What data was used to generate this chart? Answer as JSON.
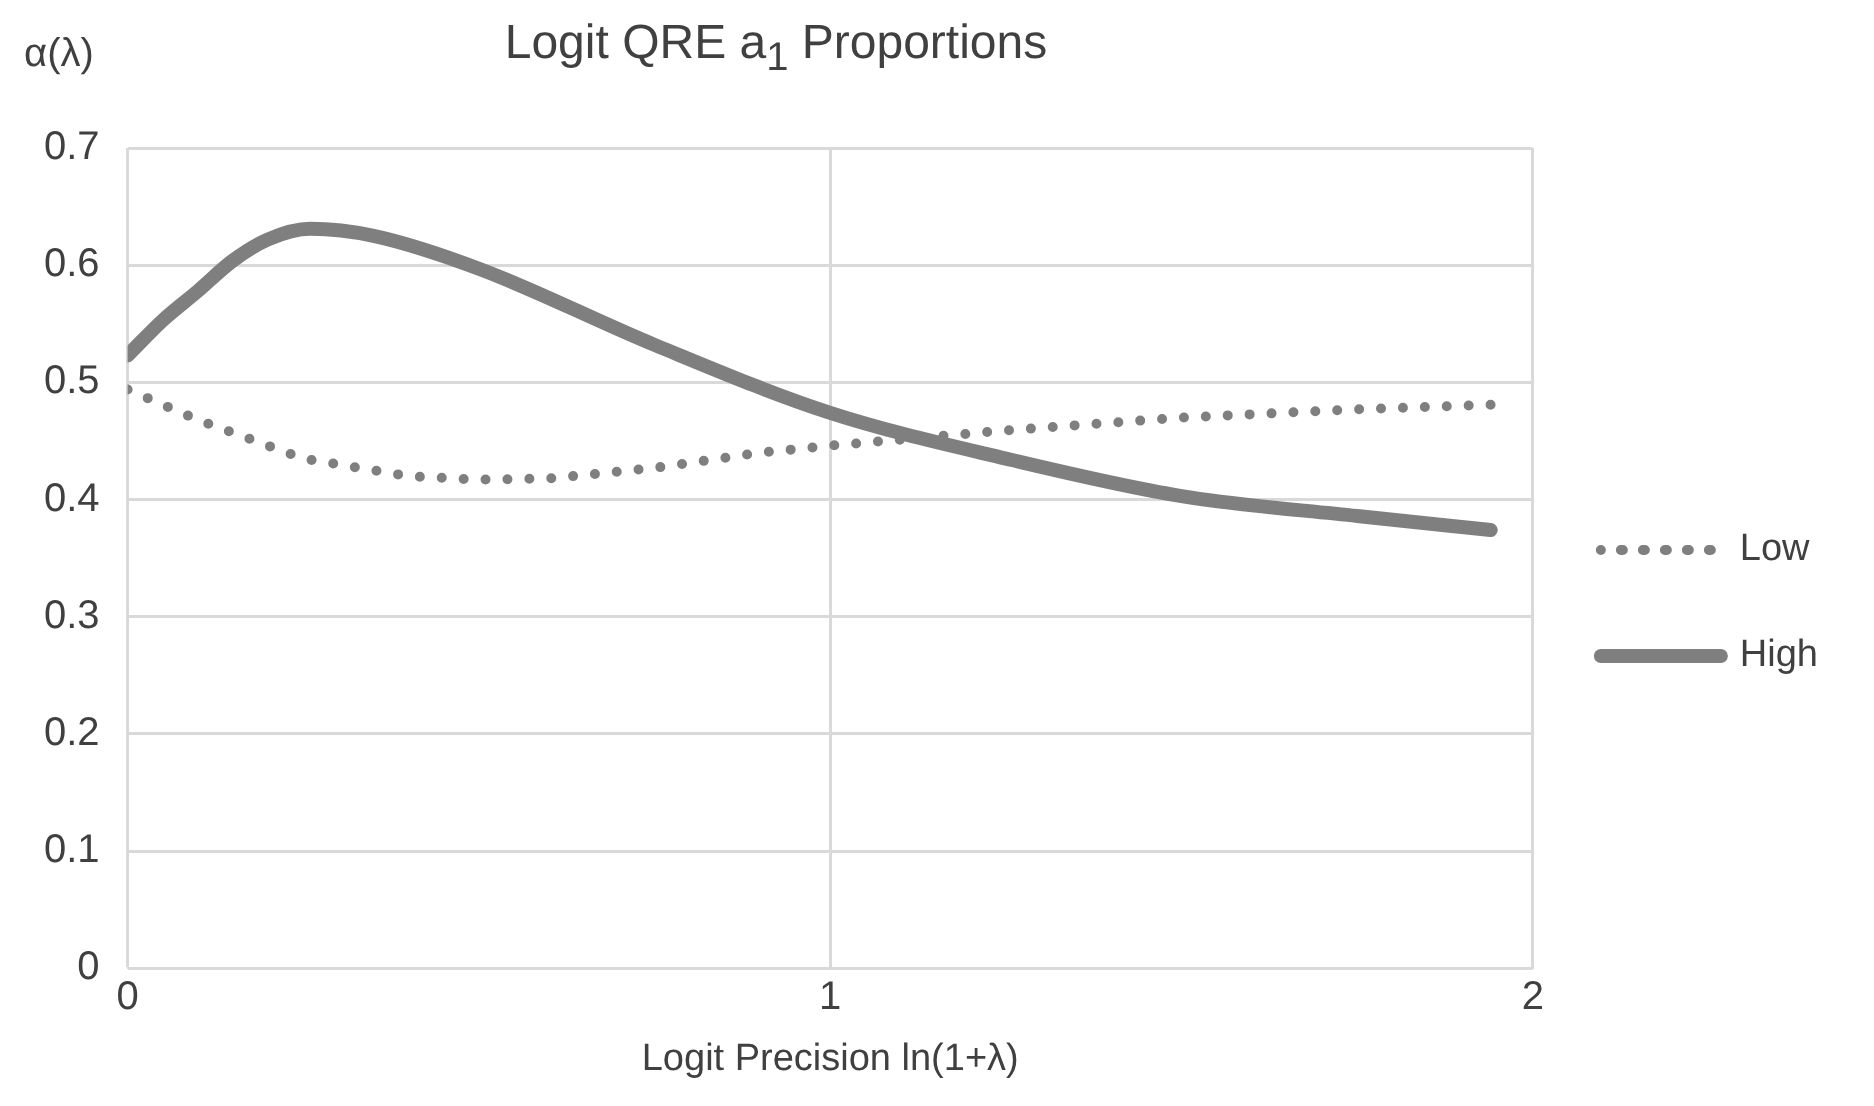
{
  "chart_data": {
    "type": "line",
    "title": "Logit QRE a$_{1}$ Proportions",
    "xlabel": "Logit Precision ln(1+λ)",
    "ylabel": "α(λ)",
    "xlim": [
      0,
      2
    ],
    "xticks": [
      0,
      1,
      2
    ],
    "ylim": [
      0,
      0.7
    ],
    "yticks": [
      0,
      0.1,
      0.2,
      0.3,
      0.4,
      0.5,
      0.6,
      0.7
    ],
    "grid": true,
    "legend": "right",
    "marker": "none",
    "series": [
      {
        "name": "Low",
        "color": "#7f7f7f",
        "line_style": "dotted",
        "x": [
          0,
          0.1,
          0.25,
          0.4,
          0.5,
          0.6,
          0.75,
          0.9,
          1,
          1.25,
          1.5,
          1.75,
          1.94
        ],
        "values": [
          0.494,
          0.468,
          0.435,
          0.42,
          0.417,
          0.418,
          0.427,
          0.44,
          0.446,
          0.459,
          0.47,
          0.477,
          0.481
        ]
      },
      {
        "name": "High",
        "color": "#7f7f7f",
        "line_style": "solid",
        "x": [
          0,
          0.05,
          0.1,
          0.15,
          0.2,
          0.26,
          0.35,
          0.5,
          0.75,
          1,
          1.25,
          1.5,
          1.75,
          1.94
        ],
        "values": [
          0.523,
          0.553,
          0.578,
          0.604,
          0.622,
          0.631,
          0.625,
          0.597,
          0.532,
          0.474,
          0.435,
          0.403,
          0.386,
          0.374
        ]
      }
    ]
  }
}
